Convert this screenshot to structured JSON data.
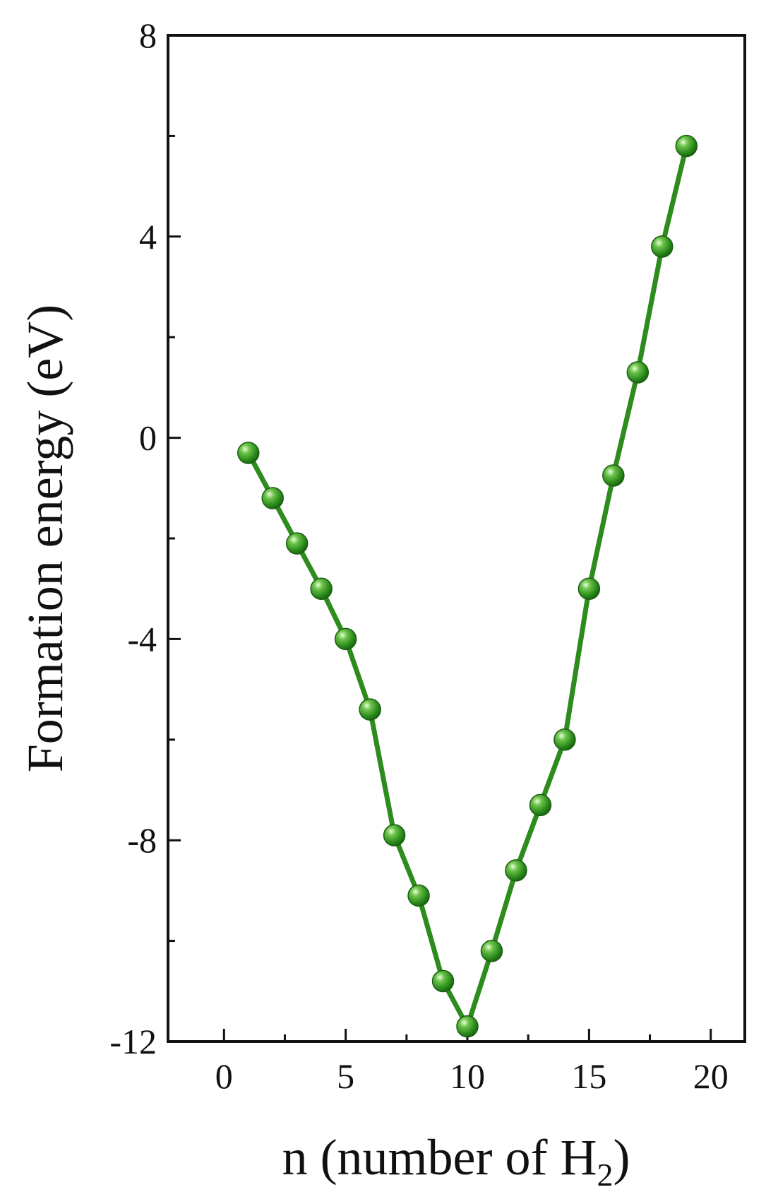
{
  "chart_data": {
    "type": "line",
    "title": "",
    "xlabel": "n (number of H",
    "xlabel_subscript": "2",
    "xlabel_suffix": ")",
    "ylabel": "Formation energy (eV)",
    "xlim": [
      -2.3,
      21.4
    ],
    "ylim": [
      -12,
      8
    ],
    "x_ticks": [
      0,
      5,
      10,
      15,
      20
    ],
    "x_minor_ticks": [
      2.5,
      7.5,
      12.5,
      17.5
    ],
    "y_ticks": [
      -12,
      -8,
      -4,
      0,
      4,
      8
    ],
    "y_minor_ticks": [
      -10,
      -6,
      -2,
      2,
      6
    ],
    "x_tick_labels": [
      "0",
      "5",
      "10",
      "15",
      "20"
    ],
    "y_tick_labels": [
      "-12",
      "-8",
      "-4",
      "0",
      "4",
      "8"
    ],
    "grid": false,
    "legend": "none",
    "series": [
      {
        "color": "#2e8b1e",
        "marker": "sphere",
        "x": [
          1,
          2,
          3,
          4,
          5,
          6,
          7,
          8,
          9,
          10,
          11,
          12,
          13,
          14,
          15,
          16,
          17,
          18,
          19
        ],
        "y": [
          -0.3,
          -1.2,
          -2.1,
          -3.0,
          -4.0,
          -5.4,
          -7.9,
          -9.1,
          -10.8,
          -11.7,
          -10.2,
          -8.6,
          -7.3,
          -6.0,
          -3.0,
          -0.75,
          1.3,
          3.8,
          5.8
        ]
      }
    ]
  }
}
